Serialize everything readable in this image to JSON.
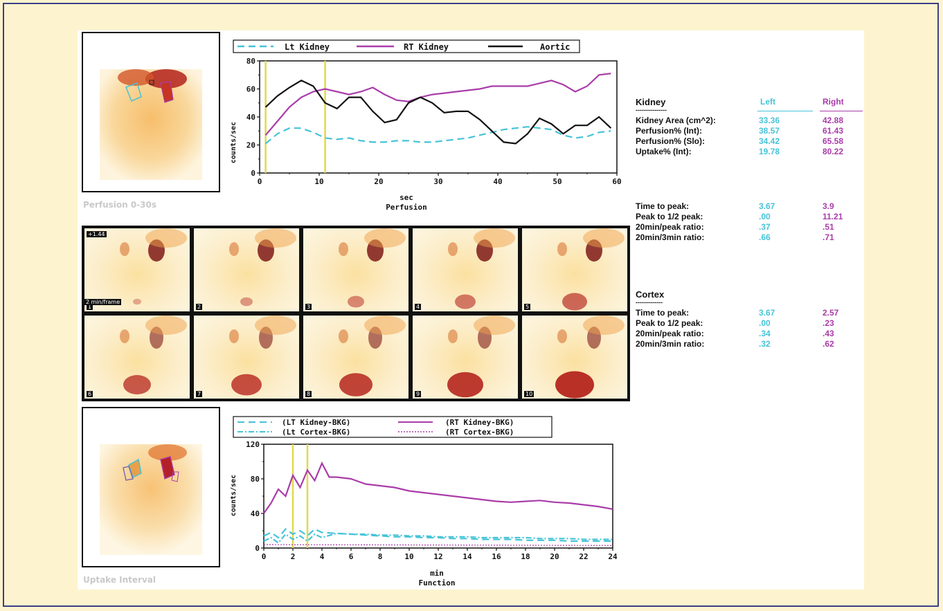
{
  "colors": {
    "left": "#45c3d8",
    "right": "#a93ca9",
    "aortic": "#111111",
    "marker": "#e2d94a",
    "background": "#fdf4cf",
    "border": "#3d3f86"
  },
  "images": {
    "perfusion_caption": "Perfusion 0-30s",
    "uptake_caption": "Uptake Interval",
    "tiles": {
      "first_label_top": "+1.44",
      "first_label_bottom": "2 min/frame",
      "numbers": [
        "1",
        "2",
        "3",
        "4",
        "5",
        "6",
        "7",
        "8",
        "9",
        "10"
      ]
    }
  },
  "kidney_table": {
    "title": "Kidney",
    "divider": "---------------",
    "col_left": "Left",
    "col_right": "Right",
    "rows": [
      {
        "label": "Kidney Area (cm^2):",
        "left": "33.36",
        "right": "42.88"
      },
      {
        "label": "Perfusion% (Int):",
        "left": "38.57",
        "right": "61.43"
      },
      {
        "label": "Perfusion% (Slo):",
        "left": "34.42",
        "right": "65.58"
      },
      {
        "label": "Uptake% (Int):",
        "left": "19.78",
        "right": "80.22"
      }
    ]
  },
  "timing_table": {
    "rows": [
      {
        "label": "Time to peak:",
        "left": "3.67",
        "right": "3.9"
      },
      {
        "label": "Peak to 1/2 peak:",
        "left": ".00",
        "right": "11.21"
      },
      {
        "label": "20min/peak ratio:",
        "left": ".37",
        "right": ".51"
      },
      {
        "label": "20min/3min ratio:",
        "left": ".66",
        "right": ".71"
      }
    ]
  },
  "cortex_table": {
    "title": "Cortex",
    "divider": "-------------",
    "rows": [
      {
        "label": "Time to peak:",
        "left": "3.67",
        "right": "2.57"
      },
      {
        "label": "Peak to 1/2 peak:",
        "left": ".00",
        "right": ".23"
      },
      {
        "label": "20min/peak ratio:",
        "left": ".34",
        "right": ".43"
      },
      {
        "label": "20min/3min ratio:",
        "left": ".32",
        "right": ".62"
      }
    ]
  },
  "chart_data": [
    {
      "type": "line",
      "title": "Perfusion",
      "xlabel": "sec",
      "ylabel": "counts/sec",
      "xlim": [
        0,
        60
      ],
      "ylim": [
        0,
        80
      ],
      "xticks": [
        0,
        10,
        20,
        30,
        40,
        50,
        60
      ],
      "yticks": [
        0,
        20,
        40,
        60,
        80
      ],
      "legend": "top",
      "markers_x": [
        1,
        11
      ],
      "series": [
        {
          "name": "Lt Kidney",
          "style": "dashed",
          "color": "#45c3d8",
          "x": [
            1,
            3,
            5,
            7,
            9,
            11,
            13,
            15,
            17,
            19,
            21,
            23,
            25,
            27,
            29,
            31,
            33,
            35,
            37,
            39,
            41,
            43,
            45,
            47,
            49,
            51,
            53,
            55,
            57,
            59
          ],
          "y": [
            21,
            28,
            32,
            32,
            29,
            25,
            24,
            25,
            23,
            22,
            22,
            23,
            23,
            22,
            22,
            23,
            24,
            25,
            27,
            29,
            31,
            32,
            33,
            32,
            31,
            27,
            25,
            26,
            29,
            30
          ]
        },
        {
          "name": "RT Kidney",
          "style": "solid",
          "color": "#a93ca9",
          "x": [
            1,
            3,
            5,
            7,
            9,
            11,
            13,
            15,
            17,
            19,
            21,
            23,
            25,
            27,
            29,
            31,
            33,
            35,
            37,
            39,
            41,
            43,
            45,
            47,
            49,
            51,
            53,
            55,
            57,
            59
          ],
          "y": [
            27,
            37,
            47,
            54,
            58,
            60,
            58,
            56,
            58,
            61,
            56,
            52,
            51,
            54,
            56,
            57,
            58,
            59,
            60,
            62,
            62,
            62,
            62,
            64,
            66,
            63,
            58,
            62,
            70,
            71
          ]
        },
        {
          "name": "Aortic",
          "style": "solid",
          "color": "#111111",
          "x": [
            1,
            3,
            5,
            7,
            9,
            11,
            13,
            15,
            17,
            19,
            21,
            23,
            25,
            27,
            29,
            31,
            33,
            35,
            37,
            39,
            41,
            43,
            45,
            47,
            49,
            51,
            53,
            55,
            57,
            59
          ],
          "y": [
            47,
            55,
            61,
            66,
            62,
            50,
            46,
            54,
            54,
            44,
            36,
            38,
            50,
            54,
            50,
            43,
            44,
            44,
            38,
            30,
            22,
            21,
            28,
            39,
            35,
            28,
            34,
            34,
            40,
            32
          ]
        }
      ]
    },
    {
      "type": "line",
      "title": "Function",
      "xlabel": "min",
      "ylabel": "counts/sec",
      "xlim": [
        0,
        24
      ],
      "ylim": [
        0,
        120
      ],
      "xticks": [
        0,
        2,
        4,
        6,
        8,
        10,
        12,
        14,
        16,
        18,
        20,
        22,
        24
      ],
      "yticks": [
        0,
        40,
        80,
        120
      ],
      "legend": "top",
      "markers_x": [
        2,
        3
      ],
      "series": [
        {
          "name": "(LT Kidney-BKG)",
          "style": "dashed",
          "color": "#45c3d8",
          "x": [
            0,
            0.5,
            1,
            1.5,
            2,
            2.5,
            3,
            3.5,
            4,
            5,
            6,
            7,
            8,
            9,
            10,
            11,
            12,
            13,
            14,
            15,
            16,
            17,
            18,
            19,
            20,
            21,
            22,
            23,
            24
          ],
          "y": [
            14,
            18,
            12,
            22,
            16,
            20,
            14,
            22,
            18,
            17,
            16,
            15,
            14,
            13,
            13,
            12,
            12,
            11,
            11,
            10,
            10,
            10,
            9,
            9,
            9,
            8,
            8,
            8,
            8
          ]
        },
        {
          "name": "(Lt Cortex-BKG)",
          "style": "dashdot",
          "color": "#45c3d8",
          "x": [
            0,
            0.5,
            1,
            1.5,
            2,
            2.5,
            3,
            3.5,
            4,
            5,
            6,
            7,
            8,
            9,
            10,
            11,
            12,
            13,
            14,
            15,
            16,
            17,
            18,
            19,
            20,
            21,
            22,
            23,
            24
          ],
          "y": [
            8,
            12,
            6,
            16,
            10,
            14,
            8,
            16,
            12,
            17,
            16,
            16,
            15,
            15,
            14,
            14,
            13,
            13,
            13,
            12,
            12,
            12,
            12,
            11,
            11,
            11,
            10,
            10,
            10
          ]
        },
        {
          "name": "(RT Kidney-BKG)",
          "style": "solid",
          "color": "#a93ca9",
          "x": [
            0,
            0.5,
            1,
            1.5,
            2,
            2.5,
            3,
            3.5,
            4,
            4.5,
            5,
            6,
            7,
            8,
            9,
            10,
            11,
            12,
            13,
            14,
            15,
            16,
            17,
            18,
            19,
            20,
            21,
            22,
            23,
            24
          ],
          "y": [
            40,
            52,
            68,
            60,
            84,
            70,
            90,
            78,
            98,
            82,
            82,
            80,
            74,
            72,
            70,
            66,
            64,
            62,
            60,
            58,
            56,
            54,
            53,
            54,
            55,
            53,
            52,
            50,
            48,
            45
          ]
        },
        {
          "name": "(RT Cortex-BKG)",
          "style": "dotted",
          "color": "#a93ca9",
          "x": [
            0,
            24
          ],
          "y": [
            4,
            3
          ]
        }
      ]
    }
  ]
}
